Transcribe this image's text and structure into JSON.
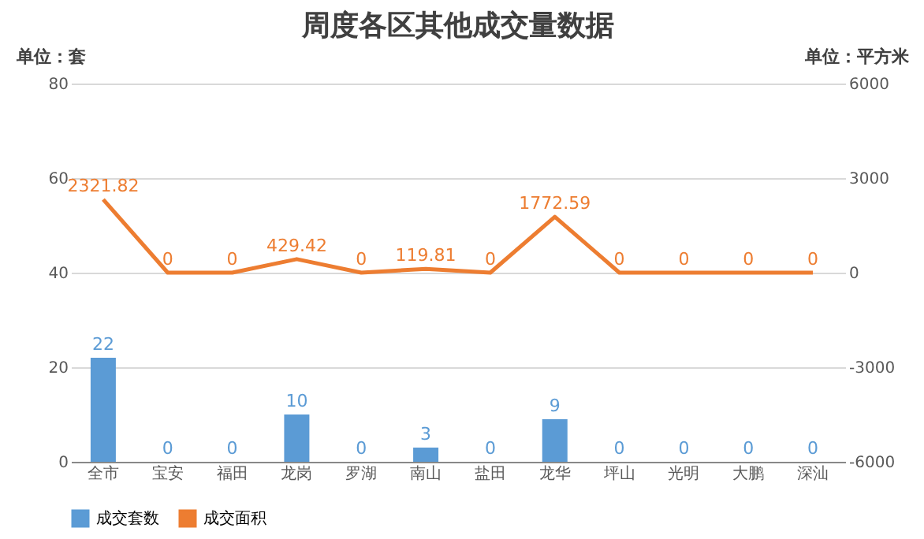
{
  "chart_data": {
    "type": "bar",
    "title": "周度各区其他成交量数据",
    "ylabel": "单位：套",
    "y2label": "单位：平方米",
    "categories": [
      "全市",
      "宝安",
      "福田",
      "龙岗",
      "罗湖",
      "南山",
      "盐田",
      "龙华",
      "坪山",
      "光明",
      "大鹏",
      "深汕"
    ],
    "series": [
      {
        "name": "成交套数",
        "color": "#5b9bd5",
        "values": [
          22,
          0,
          0,
          10,
          0,
          3,
          0,
          9,
          0,
          0,
          0,
          0
        ]
      },
      {
        "name": "成交面积",
        "type": "line",
        "axis": "y2",
        "color": "#ed7d31",
        "values": [
          2321.82,
          0,
          0,
          429.42,
          0,
          119.81,
          0,
          1772.59,
          0,
          0,
          0,
          0
        ]
      }
    ],
    "ylim": [
      0,
      80
    ],
    "yticks": [
      0,
      20,
      40,
      60,
      80
    ],
    "y2lim": [
      -6000,
      6000
    ],
    "y2ticks": [
      -6000,
      -3000,
      0,
      3000,
      6000
    ],
    "grid": "y",
    "legend": "bottom",
    "data_labels": true,
    "marker": "none"
  }
}
